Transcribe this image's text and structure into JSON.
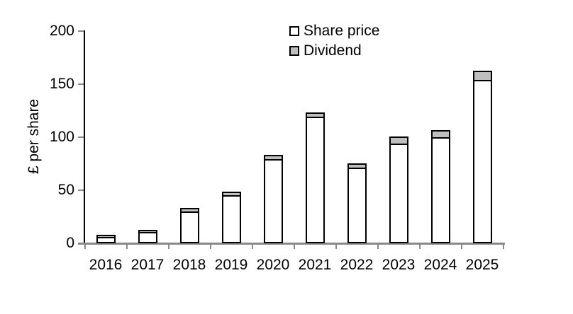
{
  "chart_data": {
    "type": "bar",
    "stacked": true,
    "title": "",
    "categories": [
      "2016",
      "2017",
      "2018",
      "2019",
      "2020",
      "2021",
      "2022",
      "2023",
      "2024",
      "2025"
    ],
    "series": [
      {
        "name": "Share price",
        "color": "#ffffff",
        "values": [
          5,
          9.5,
          29,
          44,
          78,
          118,
          70,
          93,
          99,
          153
        ]
      },
      {
        "name": "Dividend",
        "color": "#bfbfbf",
        "values": [
          0.5,
          0.5,
          1.5,
          2,
          2.5,
          3,
          3,
          5,
          5,
          7
        ]
      }
    ],
    "xlabel": "",
    "ylabel": "£ per share",
    "ylim": [
      0,
      200
    ],
    "yticks": [
      0,
      50,
      100,
      150,
      200
    ],
    "grid": false,
    "legend_position": "top-center",
    "colors": {
      "bar_border": "#000000",
      "y_axis": "#000000",
      "x_axis": "#898989",
      "tick": "#898989",
      "text": "#000000",
      "background": "#ffffff"
    }
  }
}
